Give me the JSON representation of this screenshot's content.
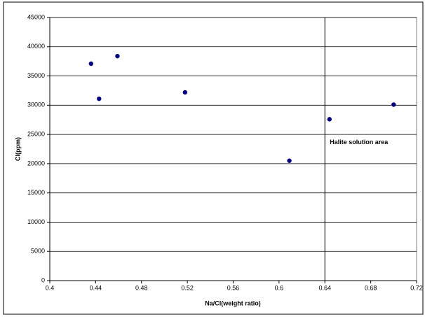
{
  "chart_data": {
    "type": "scatter",
    "x_label": "Na/Cl(weight ratio)",
    "y_label": "Cl(ppm)",
    "series": [
      {
        "color": "#000080",
        "x": [
          0.436,
          0.443,
          0.459,
          0.518,
          0.609,
          0.644,
          0.7
        ],
        "values": [
          37100,
          31100,
          38400,
          32200,
          20500,
          27600,
          30100
        ]
      }
    ],
    "xlim": [
      0.4,
      0.72
    ],
    "xticks": [
      0.4,
      0.44,
      0.48,
      0.52,
      0.56,
      0.6,
      0.64,
      0.68,
      0.72
    ],
    "ylim": [
      0,
      45000
    ],
    "yticks": [
      0,
      5000,
      10000,
      15000,
      20000,
      25000,
      30000,
      35000,
      40000,
      45000
    ],
    "grid": true,
    "vline": 0.64,
    "annotation": "Halite solution area"
  }
}
